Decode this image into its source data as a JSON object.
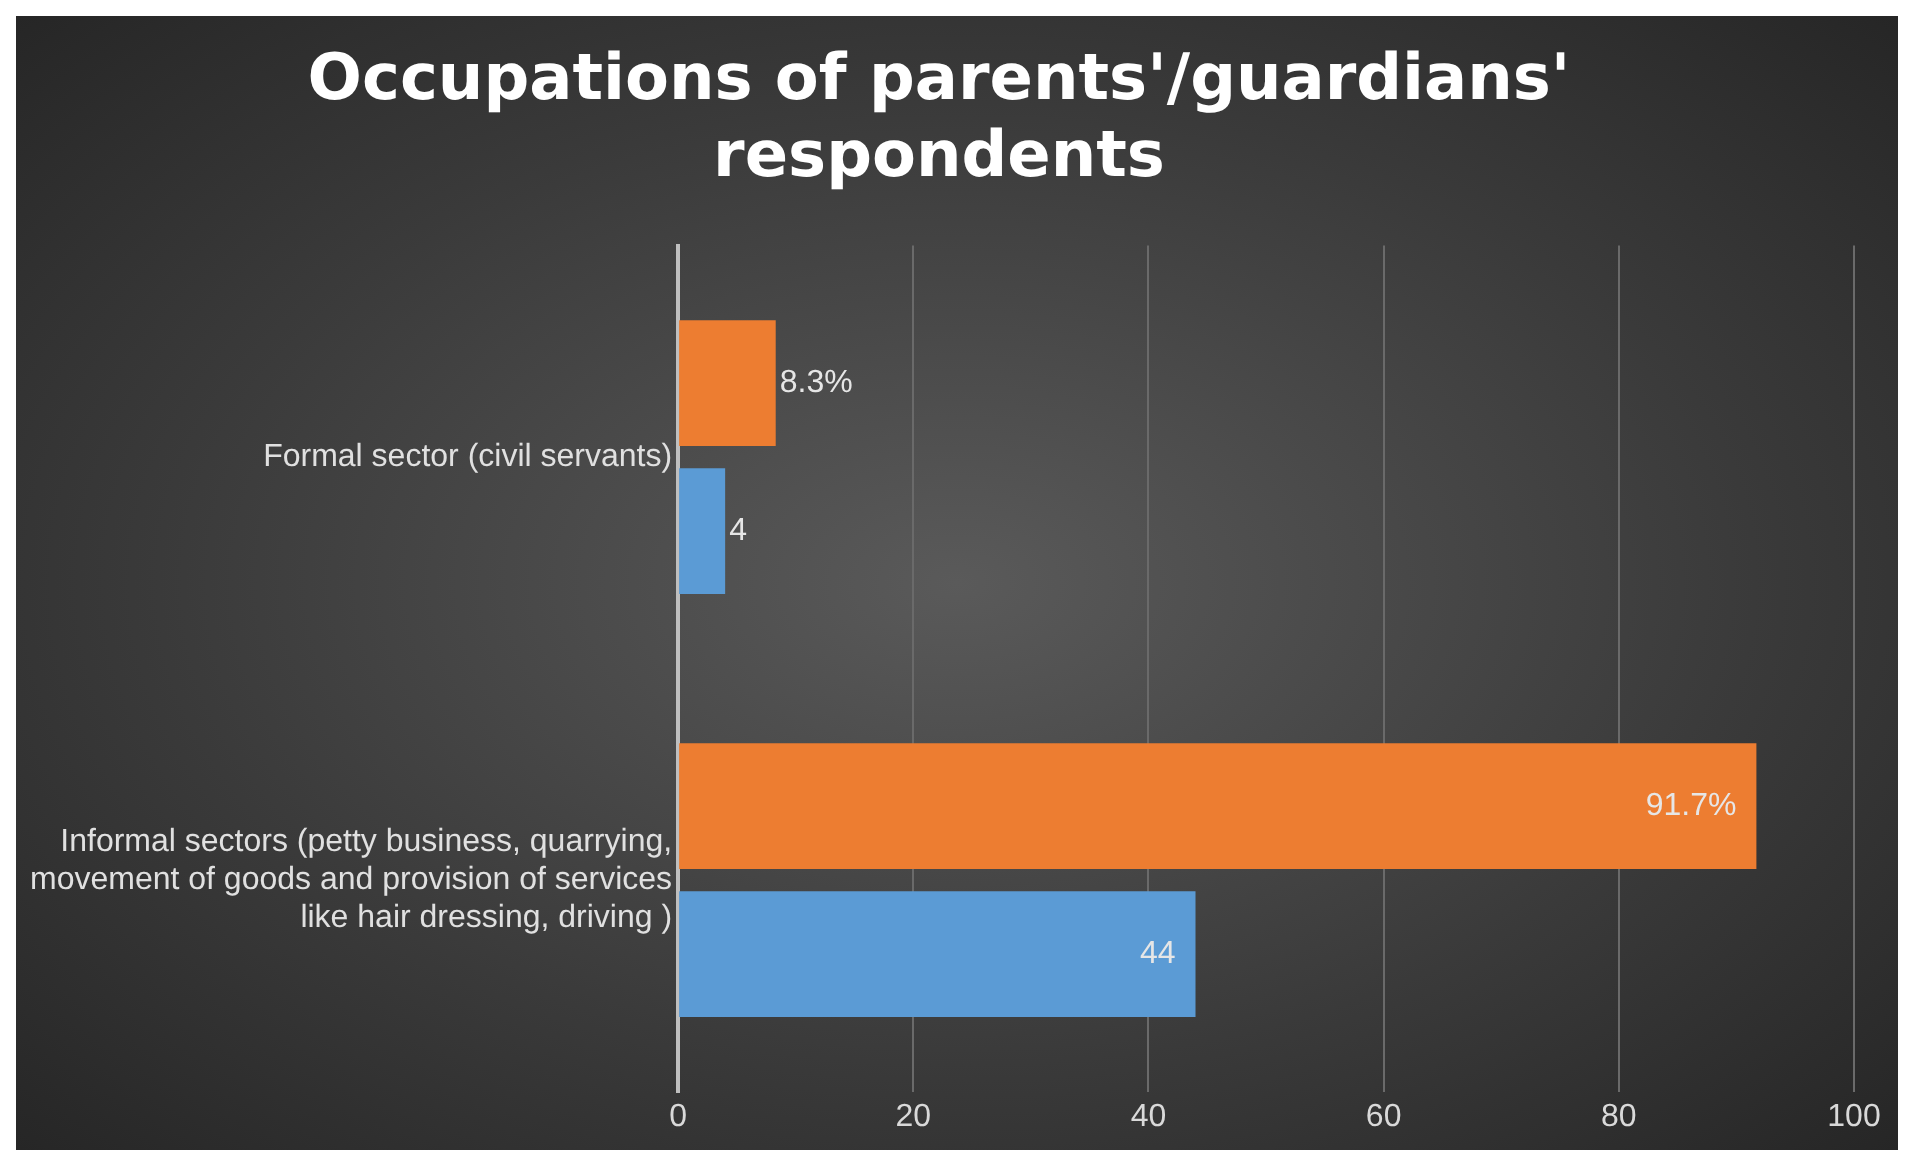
{
  "chart_data": {
    "type": "bar",
    "orientation": "horizontal",
    "title": "Occupations of parents'/guardians' respondents",
    "categories": [
      "Formal sector (civil servants)",
      "Informal sectors (petty business, quarrying, movement of goods and provision of services like hair dressing, driving )"
    ],
    "series": [
      {
        "color": "#ed7d31",
        "values": [
          8.3,
          91.7
        ],
        "value_labels": [
          "8.3%",
          "91.7%"
        ]
      },
      {
        "color": "#5b9bd5",
        "values": [
          4,
          44
        ],
        "value_labels": [
          "4",
          "44"
        ]
      }
    ],
    "xlim": [
      0,
      100
    ],
    "xticks": [
      0,
      20,
      40,
      60,
      80,
      100
    ],
    "grid": "x",
    "legend": false
  }
}
